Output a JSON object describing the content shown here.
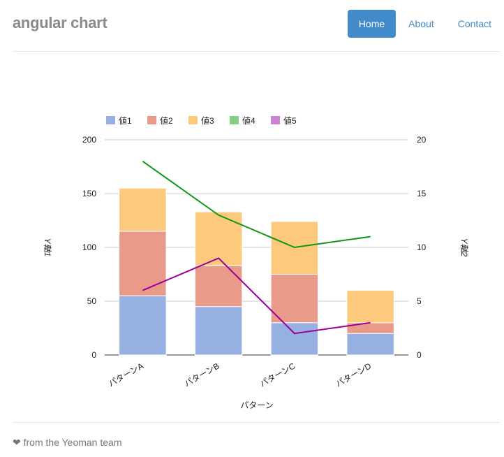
{
  "header": {
    "brand": "angular chart",
    "nav": [
      {
        "label": "Home",
        "active": true
      },
      {
        "label": "About",
        "active": false
      },
      {
        "label": "Contact",
        "active": false
      }
    ]
  },
  "footer": {
    "icon": "heart-icon",
    "text": "from the Yeoman team"
  },
  "chart_data": {
    "type": "bar",
    "stacked": true,
    "categories": [
      "パターンA",
      "パターンB",
      "パターンC",
      "パターンD"
    ],
    "xlabel": "パターン",
    "ylabel": "Y軸1",
    "y2label": "Y軸2",
    "ylim": [
      0,
      200
    ],
    "y2lim": [
      0,
      20
    ],
    "yticks": [
      "0",
      "50",
      "100",
      "150",
      "200"
    ],
    "y2ticks": [
      "0",
      "5",
      "10",
      "15",
      "20"
    ],
    "grid": true,
    "legend": "top-left",
    "series": [
      {
        "name": "値1",
        "type": "bar",
        "axis": "left",
        "color": "#97b0e2",
        "values": [
          55,
          45,
          30,
          20
        ]
      },
      {
        "name": "値2",
        "type": "bar",
        "axis": "left",
        "color": "#ea9a88",
        "values": [
          60,
          38,
          45,
          10
        ]
      },
      {
        "name": "値3",
        "type": "bar",
        "axis": "left",
        "color": "#fdc97c",
        "values": [
          40,
          50,
          49,
          30
        ]
      },
      {
        "name": "値4",
        "type": "line",
        "axis": "right",
        "color": "#109618",
        "values": [
          18,
          13,
          10,
          11
        ]
      },
      {
        "name": "値5",
        "type": "line",
        "axis": "right",
        "color": "#990099",
        "values": [
          6,
          9,
          2,
          3
        ]
      }
    ],
    "legend_colors": [
      "#97b0e2",
      "#ea9a88",
      "#fdc97c",
      "#87cc87",
      "#cc82d2"
    ]
  }
}
